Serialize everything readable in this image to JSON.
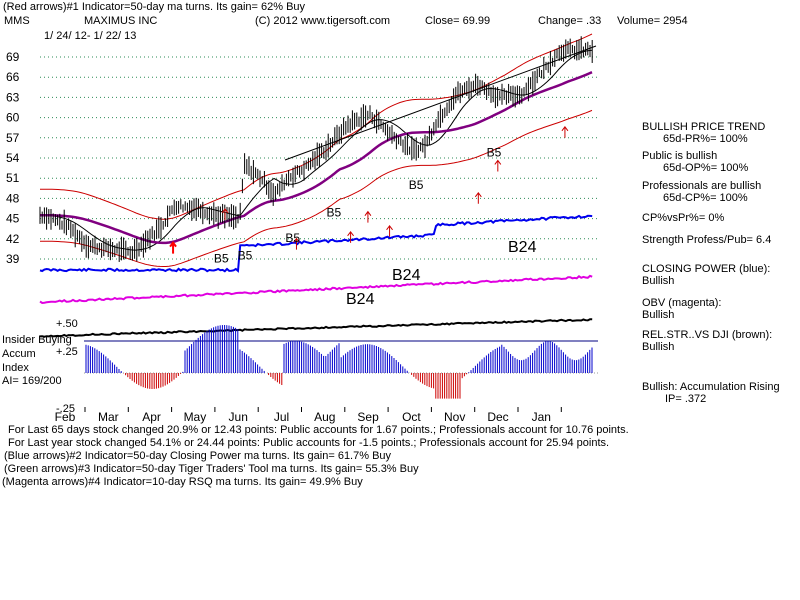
{
  "header": {
    "line1": "(Red arrows)#1 Indicator=50-day ma turns. Its gain= 62% Buy",
    "symbol": "MMS",
    "company": "MAXIMUS INC",
    "copyright": "(C) 2012 www.tigersoft.com",
    "close": "Close=  69.99",
    "change": "Change= .33",
    "volume": "Volume= 2954",
    "date_range": "1/ 24/ 12- 1/ 22/ 13"
  },
  "right_panel": {
    "trend_title": "BULLISH PRICE TREND",
    "pr": "65d-PR%= 100%",
    "public_title": "Public is bullish",
    "op": "65d-OP%= 100%",
    "pros_title": "Professionals are bullish",
    "cp": "65d-CP%= 100%",
    "cpvspr": "CP%vsPr%=  0%",
    "strength": "Strength Profess/Pub= 6.4",
    "closing_power_title": "CLOSING POWER (blue):",
    "closing_power_value": "Bullish",
    "obv_title": "OBV (magenta):",
    "obv_value": "Bullish",
    "relstr_title": "REL.STR..VS DJI (brown):",
    "relstr_value": "Bullish",
    "accum_title": "Bullish: Accumulation Rising",
    "ip": "IP=  .372"
  },
  "accum_panel": {
    "insider": "Insider Buying",
    "accum": "Accum",
    "index": "Index",
    "ai": "AI= 169/200",
    "plus50": "+.50",
    "plus25": "+.25",
    "minus25": "-.25"
  },
  "footer": {
    "line1": "For Last 65 days stock changed  20.9% or  12.43 points:  Public accounts for  1.67 points.;  Professionals account for  10.76 points.",
    "line2": "For Last year stock changed  54.1% or  24.44 points:  Public accounts for -1.5 points.;  Professionals account for  25.94 points.",
    "line3": "(Blue arrows)#2 Indicator=50-day Closing Power ma turns. Its gain= 61.7% Buy",
    "line4": "(Green arrows)#3 Indicator=50-day Tiger Traders' Tool ma turns. Its gain= 55.3% Buy",
    "line5": "(Magenta arrows)#4 Indicator=10-day RSQ ma turns. Its gain= 49.9% Buy"
  },
  "chart_data": {
    "type": "line",
    "title": "MAXIMUS INC (MMS) 1/24/12 - 1/22/13",
    "y_ticks": [
      "69",
      "66",
      "63",
      "60",
      "57",
      "54",
      "51",
      "48",
      "45",
      "42",
      "39"
    ],
    "y_range": [
      37.5,
      70.5
    ],
    "months": [
      "Feb",
      "Mar",
      "Apr",
      "May",
      "Jun",
      "Jul",
      "Aug",
      "Sep",
      "Oct",
      "Nov",
      "Dec",
      "Jan"
    ],
    "price_series": {
      "name": "Close",
      "x_months": [
        0,
        0.5,
        1,
        1.5,
        2,
        2.3,
        2.7,
        3,
        3.5,
        4,
        4.5,
        4.6,
        5,
        5.3,
        5.6,
        6,
        6.5,
        7,
        7.5,
        8,
        8.5,
        8.8,
        9,
        9.5,
        10,
        10.5,
        11,
        11.5,
        11.9
      ],
      "values": [
        45.5,
        44,
        41,
        40.5,
        40,
        41.5,
        44,
        47,
        46.5,
        45.5,
        45,
        53,
        51,
        48.5,
        51,
        52.5,
        55.5,
        59,
        60.5,
        57.5,
        55,
        56,
        59,
        63.5,
        65,
        63,
        63.5,
        67,
        69.99
      ]
    },
    "signal_labels": [
      {
        "text": "B5",
        "month": 3.9,
        "price": 38.5
      },
      {
        "text": "B5",
        "month": 4.45,
        "price": 38.9
      },
      {
        "text": "B5",
        "month": 5.55,
        "price": 41.5
      },
      {
        "text": "B5",
        "month": 6.5,
        "price": 45.3
      },
      {
        "text": "B5",
        "month": 8.4,
        "price": 49.4
      },
      {
        "text": "B5",
        "month": 10.2,
        "price": 54.2
      }
    ],
    "indicator_labels": [
      {
        "text": "B24",
        "which": "closing_power"
      },
      {
        "text": "B24",
        "which": "obv"
      },
      {
        "text": "B24",
        "which": "accum"
      }
    ]
  }
}
